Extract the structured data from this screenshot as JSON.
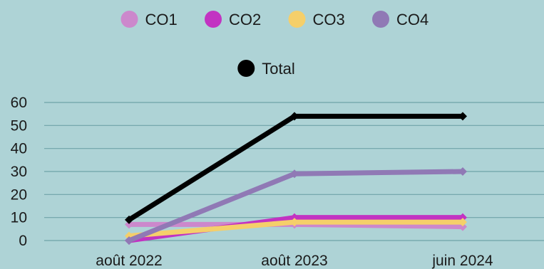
{
  "chart_data": {
    "type": "line",
    "title": "",
    "xlabel": "",
    "ylabel": "",
    "categories": [
      "août 2022",
      "août 2023",
      "juin 2024"
    ],
    "ylim": [
      0,
      60
    ],
    "yticks": [
      0,
      10,
      20,
      30,
      40,
      50,
      60
    ],
    "grid": true,
    "legend_position": "top",
    "series": [
      {
        "name": "CO1",
        "color": "#cc88cc",
        "values": [
          7,
          7,
          6
        ],
        "marker": "diamond"
      },
      {
        "name": "CO2",
        "color": "#c233c2",
        "values": [
          0,
          10,
          10
        ],
        "marker": "diamond"
      },
      {
        "name": "CO3",
        "color": "#f5cf6a",
        "values": [
          2,
          8,
          8
        ],
        "marker": "diamond"
      },
      {
        "name": "CO4",
        "color": "#9079b5",
        "values": [
          0,
          29,
          30
        ],
        "marker": "diamond"
      },
      {
        "name": "Total",
        "color": "#000000",
        "values": [
          9,
          54,
          54
        ],
        "marker": "diamond"
      }
    ]
  }
}
